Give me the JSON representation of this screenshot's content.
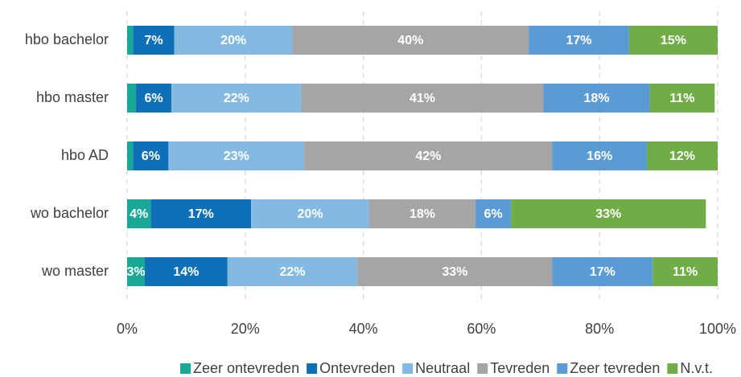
{
  "chart_data": {
    "type": "stacked_barh",
    "categories": [
      "hbo bachelor",
      "hbo master",
      "hbo AD",
      "wo bachelor",
      "wo master"
    ],
    "series": [
      {
        "name": "Zeer ontevreden",
        "color": "#17a898",
        "values": [
          1,
          1.5,
          1,
          4,
          3
        ],
        "value_labels": [
          null,
          null,
          null,
          "4%",
          "3%"
        ]
      },
      {
        "name": "Ontevreden",
        "color": "#0f70b7",
        "values": [
          7,
          6,
          6,
          17,
          14
        ],
        "value_labels": [
          "7%",
          "6%",
          "6%",
          "17%",
          "14%"
        ]
      },
      {
        "name": "Neutraal",
        "color": "#84b9e1",
        "values": [
          20,
          22,
          23,
          20,
          22
        ],
        "value_labels": [
          "20%",
          "22%",
          "23%",
          "20%",
          "22%"
        ]
      },
      {
        "name": "Tevreden",
        "color": "#a5a5a5",
        "values": [
          40,
          41,
          42,
          18,
          33
        ],
        "value_labels": [
          "40%",
          "41%",
          "42%",
          "18%",
          "33%"
        ]
      },
      {
        "name": "Zeer tevreden",
        "color": "#5b9bd5",
        "values": [
          17,
          18,
          16,
          6,
          17
        ],
        "value_labels": [
          "17%",
          "18%",
          "16%",
          "6%",
          "17%"
        ]
      },
      {
        "name": "N.v.t.",
        "color": "#70ad47",
        "values": [
          15,
          11,
          12,
          33,
          11
        ],
        "value_labels": [
          "15%",
          "11%",
          "12%",
          "33%",
          "11%"
        ]
      }
    ],
    "xlim": [
      0,
      100
    ],
    "xticks": [
      {
        "value": 0,
        "label": "0%"
      },
      {
        "value": 20,
        "label": "20%"
      },
      {
        "value": 40,
        "label": "40%"
      },
      {
        "value": 60,
        "label": "60%"
      },
      {
        "value": 80,
        "label": "80%"
      },
      {
        "value": 100,
        "label": "100%"
      }
    ],
    "grid": true,
    "legend": "bottom"
  }
}
